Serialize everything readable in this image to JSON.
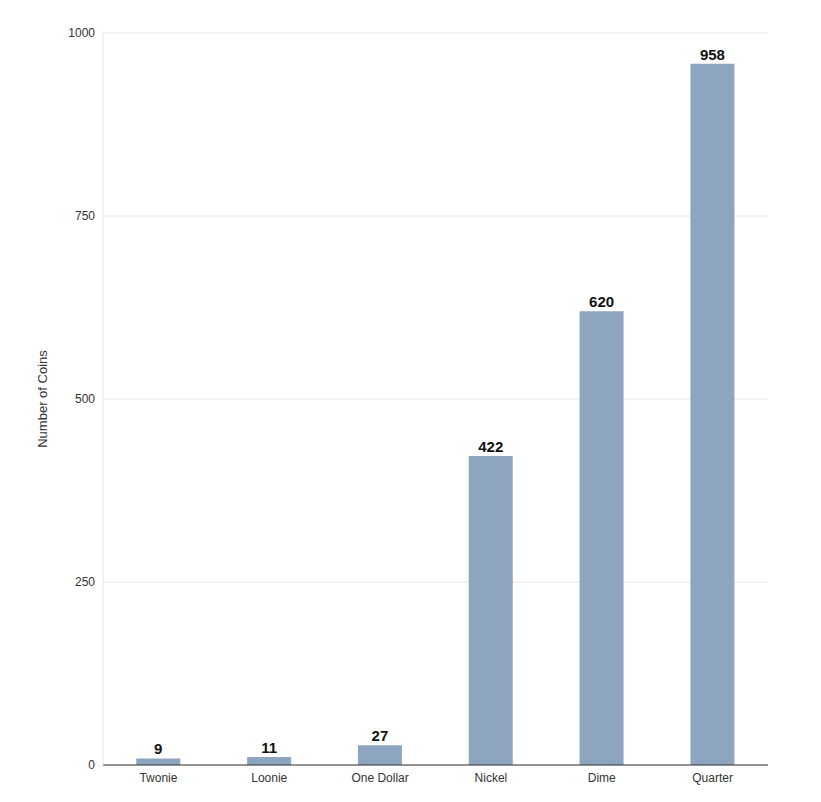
{
  "chart_data": {
    "type": "bar",
    "y_label": "Number of Coins",
    "categories": [
      "Twonie",
      "Loonie",
      "One Dollar",
      "Nickel",
      "Dime",
      "Quarter"
    ],
    "values": [
      9,
      11,
      27,
      422,
      620,
      958
    ],
    "color": "#8ea5bf",
    "ylim": [
      0,
      1000
    ],
    "yticks": [
      0,
      250,
      500,
      750,
      1000
    ],
    "grid": true,
    "data_labels": true
  }
}
